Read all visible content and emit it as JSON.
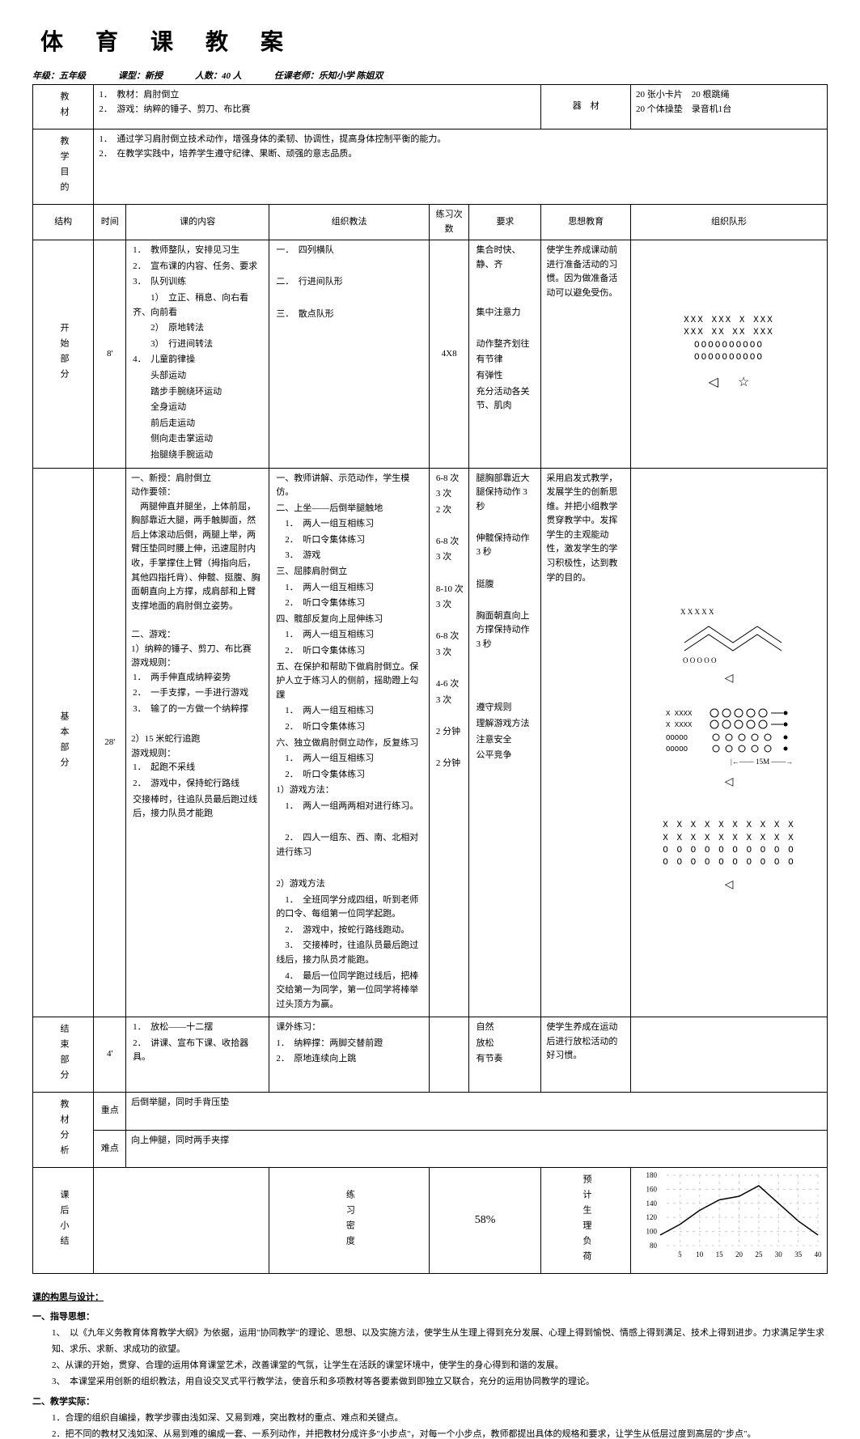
{
  "title": "体育课教案",
  "meta": {
    "grade_label": "年级：",
    "grade_value": "五年级",
    "type_label": "课型：",
    "type_value": "新授",
    "count_label": "人数：",
    "count_value": "40 人",
    "teacher_label": "任课老师：",
    "teacher_value": "乐知小学 陈姐双"
  },
  "rows": {
    "materials_label": "教材",
    "materials_content": "1．　教材：肩肘倒立\n2．　游戏：纳粹的锤子、剪刀、布比赛",
    "equipment_label": "器　材",
    "equipment_content": "20 张小卡片　20 根跳绳\n20 个体操垫　录音机1台",
    "goal_label": "教学目的",
    "goal_content": "1．　通过学习肩肘倒立技术动作，增强身体的柔韧、协调性，提高身体控制平衡的能力。\n2．　在教学实践中，培养学生遵守纪律、果断、顽强的意志品质。"
  },
  "table_header": {
    "structure": "结构",
    "time": "时间",
    "content": "课的内容",
    "method": "组织教法",
    "reps": "练习次数",
    "requirement": "要求",
    "thought": "思想教育",
    "formation": "组织队形"
  },
  "part1": {
    "label": "开始部分",
    "time": "8'",
    "content": [
      "1．　教师整队，安排见习生",
      "2．　宣布课的内容、任务、要求",
      "3．　队列训练",
      "　　1）　立正、稍息、向右看齐、向前看",
      "　　2）　原地转法",
      "　　3）　行进间转法",
      "4．　儿童韵律操",
      "　　头部运动",
      "　　踏步手腕绕环运动",
      "　　全身运动",
      "　　前后走运动",
      "　　侧向走击掌运动",
      "　　抬腿绕手腕运动"
    ],
    "method": [
      "一．　四列横队",
      "",
      "二．　行进间队形",
      "",
      "三．　散点队形"
    ],
    "reps": "4X8",
    "requirement": [
      "集合时快、静、齐",
      "",
      "",
      "集中注意力",
      "",
      "动作整齐划往",
      "有节律",
      "有弹性",
      "充分活动各关节、肌肉"
    ],
    "thought": "使学生养成课动前进行准备活动的习惯。因为做准备活动可以避免受伤。",
    "formation_rows": [
      "XXX XXX X XXX",
      "XXX XX XX XXX",
      "OOOOOOOOOO",
      "OOOOOOOOOO"
    ],
    "arrow": "◁",
    "star": "☆"
  },
  "part2": {
    "label": "基本部分",
    "time": "28'",
    "section1_title": "一、新授：肩肘倒立",
    "section1_subtitle": "动作要领：",
    "section1_text": "　两腿伸直并腿坐，上体前屈，胸部靠近大腿，两手触脚面，然后上体滚动后倒，两腿上举，两臂压垫同时腰上伸，迅速屈肘内收，手掌撑住上臂（拇指向后，其他四指托背）、伸髋、挺腹、胸面朝直向上方撑，成肩部和上臂支撑地面的肩肘倒立姿势。",
    "section2_title": "二、游戏：",
    "section2_subtitle": "1）纳粹的锤子、剪刀、布比赛",
    "game_rules_label": "游戏规则：",
    "game_rules": [
      "1．　两手伸直成纳粹姿势",
      "2．　一手支撑，一手进行游戏",
      "3．　输了的一方做一个纳粹撑"
    ],
    "section2b": "2）15 米蛇行追跑",
    "game2_rules_label": "游戏规则：",
    "game2_rules": [
      "1．　起跑不采线",
      "2．　游戏中，保持蛇行路线",
      "交接棒时，往追队员最后跑过线后，接力队员才能跑"
    ],
    "method": [
      "一、教师讲解、示范动作，学生模仿。",
      "二、上坐——后倒举腿触地",
      "　1．　两人一组互相练习",
      "　2．　听口令集体练习",
      "　3．　游戏",
      "三、屈膝肩肘倒立",
      "　1．　两人一组互相练习",
      "　2．　听口令集体练习",
      "四、髋部反复向上屈伸练习",
      "　1．　两人一组互相练习",
      "　2．　听口令集体练习",
      "五、在保护和帮助下做肩肘倒立。保护人立于练习人的侧前，摇助蹬上勾踝",
      "　1．　两人一组互相练习",
      "　2．　听口令集体练习",
      "六、独立做肩肘倒立动作，反复练习",
      "　1．　两人一组互相练习",
      "　2．　听口令集体练习",
      "1）游戏方法：",
      "　1．　两人一组两两相对进行练习。",
      "",
      "　2．　四人一组东、西、南、北相对进行练习",
      "",
      "2）游戏方法",
      "　1．　全班同学分成四组，听到老师的口令、每组第一位同学起跑。",
      "　2．　游戏中，按蛇行路线跑动。",
      "　3．　交接棒时，往追队员最后跑过线后，接力队员才能跑。",
      "　4．　最后一位同学跑过线后，把棒交给第一为同学，第一位同学将棒举过头顶方为赢。"
    ],
    "reps_list": [
      "6-8 次",
      "3 次",
      "2 次",
      "",
      "6-8 次",
      "3 次",
      "",
      "8-10 次",
      "3 次",
      "",
      "6-8 次",
      "3 次",
      "",
      "4-6 次",
      "3 次",
      "",
      "2 分钟",
      "",
      "2 分钟"
    ],
    "requirement": [
      "腿胸部靠近大腿保持动作 3 秒",
      "",
      "伸髋保持动作 3 秒",
      "",
      "挺腹",
      "",
      "胸面朝直向上方撑保持动作 3 秒",
      "",
      "",
      "",
      "遵守规则",
      "理解游戏方法",
      "注意安全",
      "公平竞争"
    ],
    "thought": "采用启发式教学，发展学生的创新思维。并把小组教学贯穿教学中。发挥学生的主观能动性，激发学生的学习积极性，达到教学的目的。",
    "formation2_rows": [
      "X  X  X  X  X  X  X  X  X  X",
      "X  X  X  X  X  X  X  X  X  X",
      "O  O  O  O  O  O  O  O  O  O",
      "O  O  O  O  O  O  O  O  O  O"
    ],
    "distance_label": "15M",
    "formation3_top": "X X X X X",
    "formation3_mid": "O O O O O"
  },
  "part3": {
    "label": "结束部分",
    "time": "4'",
    "content": [
      "1．　放松——十二摆",
      "2．　讲课、宣布下课、收拾器具。"
    ],
    "method": [
      "课外练习：",
      "1．　纳粹撑：两脚交替前蹬",
      "2．　原地连续向上跳"
    ],
    "requirement": [
      "自然",
      "放松",
      "有节奏"
    ],
    "thought": "使学生养成在运动后进行放松活动的好习惯。"
  },
  "analysis": {
    "label": "教材分析",
    "key_label": "重点",
    "key_value": "后倒举腿，同时手背压垫",
    "difficult_label": "难点",
    "difficult_value": "向上伸腿，同时两手夹撑"
  },
  "summary": {
    "label": "课后小结",
    "density_label": "练习密度",
    "density_value": "58%",
    "load_label": "预计生理负荷",
    "chart": {
      "x_ticks": [
        5,
        10,
        15,
        20,
        25,
        30,
        35,
        40
      ],
      "y_ticks": [
        80,
        100,
        120,
        140,
        160,
        180
      ],
      "points": [
        [
          0,
          95
        ],
        [
          5,
          110
        ],
        [
          10,
          130
        ],
        [
          15,
          145
        ],
        [
          20,
          150
        ],
        [
          25,
          165
        ],
        [
          30,
          140
        ],
        [
          35,
          115
        ],
        [
          40,
          95
        ]
      ],
      "line_color": "#000000",
      "grid_color": "#cccccc"
    }
  },
  "footer": {
    "title": "课的构思与设计：",
    "h1": "一、指导思想：",
    "list1": [
      "1、　以《九年义务教育体育教学大纲》为依据，运用\"协同教学\"的理论、思想、以及实施方法，使学生从生理上得到充分发展、心理上得到愉悦、情感上得到满足、技术上得到进步。力求满足学生求知、求乐、求新、求成功的欲望。",
      "2、从课的开始，贯穿、合理的运用体育课堂艺术，改善课堂的气氛，让学生在活跃的课堂环境中，使学生的身心得到和谐的发展。",
      "3、　本课堂采用创新的组织教法，用自设交叉式平行教学法，使音乐和多项教材等各要素做到即独立又联合，充分的运用协同教学的理论。"
    ],
    "h2": "二、教学实际：",
    "list2": [
      "1．合理的组织自编操，教学步骤由浅如深、又易到难，突出教材的重点、难点和关键点。",
      "2．把不同的教材又浅如深、从易到难的编成一套、一系列动作，并把教材分成许多\"小步点\"，对每一个小步点，教师都提出具体的规格和要求，让学生从低层过度到高层的\"步点\"。"
    ]
  }
}
